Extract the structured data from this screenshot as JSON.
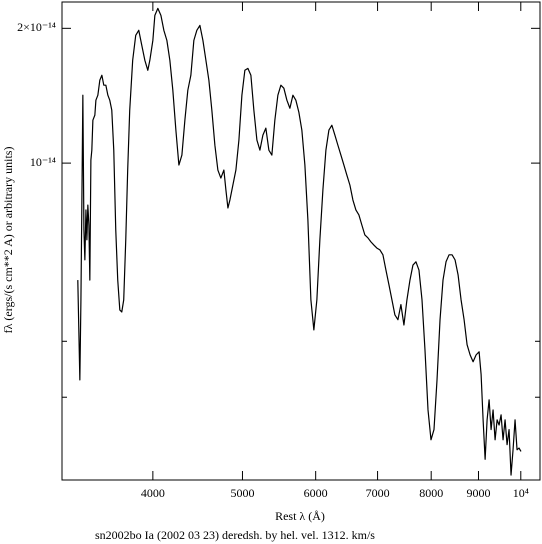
{
  "chart_data": {
    "type": "line",
    "title": "sn2002bo Ia (2002 03 23) deredsh. by hel. vel.  1312. km/s",
    "x_label": "Rest λ (Å)",
    "y_label": "fλ (ergs/(s cm**2 A) or arbitrary units)",
    "xscale": "log",
    "yscale": "log",
    "color": "#000000",
    "xlim": [
      3190,
      10490
    ],
    "ylim": [
      1.96e-15,
      2.29e-14
    ],
    "xticks": [
      4000,
      5000,
      6000,
      7000,
      8000,
      9000,
      {
        "value": 10000,
        "label": "10⁴"
      }
    ],
    "yticks": [
      {
        "value": 1e-14,
        "label": "10⁻¹⁴"
      },
      {
        "value": 2e-14,
        "label": "2×10⁻¹⁴"
      }
    ],
    "yminor": [
      3e-15,
      4e-15
    ],
    "x": [
      3318,
      3335,
      3344,
      3352,
      3360,
      3369,
      3377,
      3386,
      3394,
      3402,
      3411,
      3419,
      3428,
      3436,
      3445,
      3462,
      3471,
      3488,
      3505,
      3523,
      3540,
      3558,
      3576,
      3593,
      3611,
      3629,
      3647,
      3665,
      3684,
      3702,
      3720,
      3739,
      3757,
      3776,
      3804,
      3833,
      3862,
      3891,
      3921,
      3950,
      3970,
      4000,
      4020,
      4050,
      4081,
      4111,
      4142,
      4173,
      4204,
      4236,
      4268,
      4300,
      4332,
      4364,
      4397,
      4430,
      4463,
      4497,
      4531,
      4565,
      4599,
      4633,
      4668,
      4703,
      4738,
      4774,
      4798,
      4822,
      4846,
      4882,
      4919,
      4956,
      4993,
      5030,
      5068,
      5106,
      5144,
      5183,
      5222,
      5261,
      5300,
      5340,
      5380,
      5420,
      5461,
      5502,
      5543,
      5585,
      5627,
      5669,
      5711,
      5754,
      5797,
      5841,
      5885,
      5929,
      5973,
      6018,
      6063,
      6109,
      6155,
      6201,
      6247,
      6294,
      6341,
      6389,
      6437,
      6485,
      6534,
      6583,
      6632,
      6682,
      6732,
      6782,
      6833,
      6885,
      6936,
      6988,
      7041,
      7094,
      7147,
      7201,
      7255,
      7309,
      7364,
      7419,
      7475,
      7531,
      7588,
      7645,
      7702,
      7760,
      7819,
      7877,
      7937,
      7996,
      8056,
      8117,
      8178,
      8239,
      8301,
      8364,
      8427,
      8490,
      8554,
      8618,
      8683,
      8748,
      8814,
      8880,
      8947,
      9014,
      9059,
      9104,
      9150,
      9195,
      9241,
      9287,
      9333,
      9380,
      9427,
      9474,
      9521,
      9568,
      9616,
      9664,
      9712,
      9760,
      9809,
      9858,
      9907,
      9956,
      10005
    ],
    "values": [
      5.48e-15,
      3.28e-15,
      4.95e-15,
      8.27e-15,
      1.418e-14,
      7.09e-15,
      6.08e-15,
      7.86e-15,
      6.74e-15,
      8.06e-15,
      7.27e-15,
      5.48e-15,
      1.016e-14,
      1.069e-14,
      1.247e-14,
      1.28e-14,
      1.382e-14,
      1.418e-14,
      1.531e-14,
      1.571e-14,
      1.493e-14,
      1.493e-14,
      1.418e-14,
      1.382e-14,
      1.313e-14,
      1.069e-14,
      7.09e-15,
      5.48e-15,
      4.7e-15,
      4.65e-15,
      4.95e-15,
      6.74e-15,
      9.65e-15,
      1.313e-14,
      1.697e-14,
      1.929e-14,
      1.98e-14,
      1.833e-14,
      1.697e-14,
      1.612e-14,
      1.697e-14,
      1.88e-14,
      2.138e-14,
      2.216e-14,
      2.138e-14,
      1.98e-14,
      1.88e-14,
      1.697e-14,
      1.455e-14,
      1.185e-14,
      9.9e-15,
      1.042e-14,
      1.247e-14,
      1.455e-14,
      1.571e-14,
      1.88e-14,
      1.98e-14,
      2.03e-14,
      1.88e-14,
      1.697e-14,
      1.531e-14,
      1.313e-14,
      1.097e-14,
      9.65e-15,
      9.26e-15,
      9.65e-15,
      8.71e-15,
      7.94e-15,
      8.27e-15,
      8.93e-15,
      9.65e-15,
      1.126e-14,
      1.418e-14,
      1.612e-14,
      1.628e-14,
      1.571e-14,
      1.313e-14,
      1.126e-14,
      1.069e-14,
      1.155e-14,
      1.197e-14,
      1.069e-14,
      1.042e-14,
      1.247e-14,
      1.418e-14,
      1.493e-14,
      1.47e-14,
      1.382e-14,
      1.326e-14,
      1.418e-14,
      1.382e-14,
      1.299e-14,
      1.185e-14,
      9.9e-15,
      7.46e-15,
      4.95e-15,
      4.24e-15,
      4.95e-15,
      6.74e-15,
      8.71e-15,
      1.069e-14,
      1.185e-14,
      1.215e-14,
      1.155e-14,
      1.097e-14,
      1.042e-14,
      9.9e-15,
      9.4e-15,
      8.93e-15,
      8.27e-15,
      7.86e-15,
      7.66e-15,
      7.27e-15,
      6.91e-15,
      6.81e-15,
      6.67e-15,
      6.56e-15,
      6.46e-15,
      6.4e-15,
      6.24e-15,
      5.77e-15,
      5.35e-15,
      4.95e-15,
      4.58e-15,
      4.47e-15,
      4.83e-15,
      4.35e-15,
      4.95e-15,
      5.48e-15,
      5.92e-15,
      6.02e-15,
      5.77e-15,
      4.95e-15,
      3.83e-15,
      2.81e-15,
      2.41e-15,
      2.54e-15,
      3.28e-15,
      4.47e-15,
      5.48e-15,
      6.02e-15,
      6.24e-15,
      6.24e-15,
      6.08e-15,
      5.63e-15,
      4.95e-15,
      4.47e-15,
      3.93e-15,
      3.73e-15,
      3.6e-15,
      3.73e-15,
      3.79e-15,
      3.37e-15,
      2.67e-15,
      2.18e-15,
      2.67e-15,
      2.96e-15,
      2.54e-15,
      2.81e-15,
      2.41e-15,
      2.67e-15,
      2.6e-15,
      2.74e-15,
      2.41e-15,
      2.67e-15,
      2.35e-15,
      2.54e-15,
      2.01e-15,
      2.29e-15,
      2.67e-15,
      2.29e-15,
      2.31e-15,
      2.27e-15
    ]
  }
}
